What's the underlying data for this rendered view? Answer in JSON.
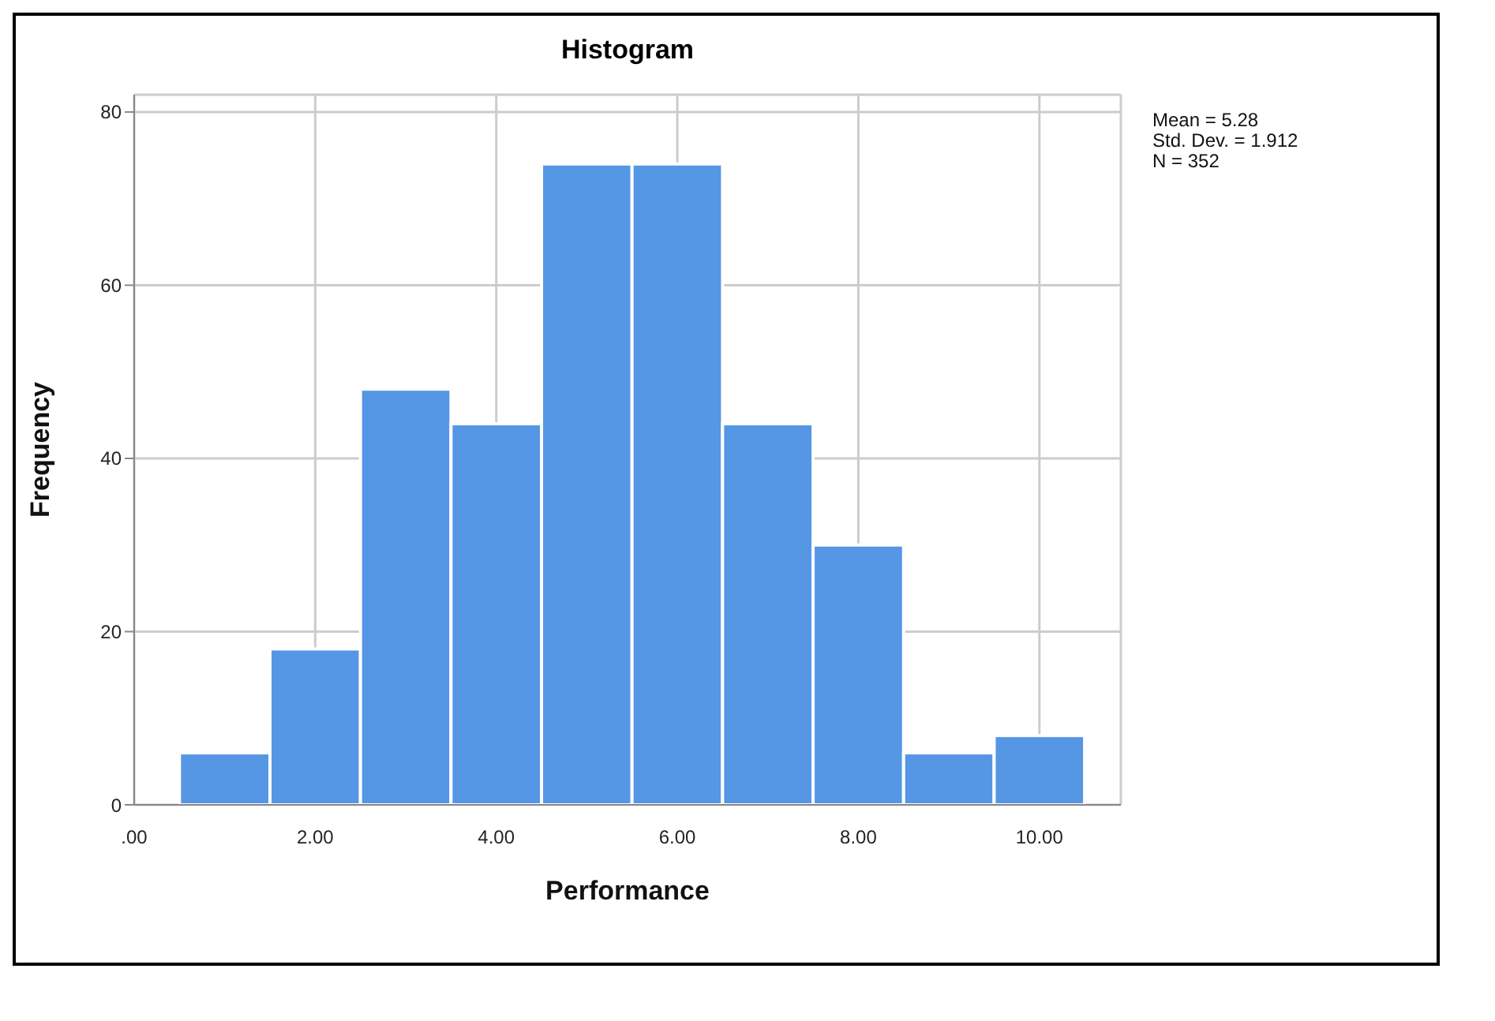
{
  "chart_data": {
    "type": "histogram",
    "title": "Histogram",
    "xlabel": "Performance",
    "ylabel": "Frequency",
    "bins": [
      0.5,
      1.5,
      2.5,
      3.5,
      4.5,
      5.5,
      6.5,
      7.5,
      8.5,
      9.5,
      10.5
    ],
    "values": [
      6,
      18,
      48,
      44,
      74,
      74,
      44,
      30,
      6,
      8
    ],
    "color": "#5596e5",
    "xlim": [
      0,
      10.9
    ],
    "xticks": [
      {
        "value": 0,
        "label": ".00"
      },
      {
        "value": 2,
        "label": "2.00"
      },
      {
        "value": 4,
        "label": "4.00"
      },
      {
        "value": 6,
        "label": "6.00"
      },
      {
        "value": 8,
        "label": "8.00"
      },
      {
        "value": 10,
        "label": "10.00"
      }
    ],
    "ylim": [
      0,
      82
    ],
    "yticks": [
      0,
      20,
      40,
      60,
      80
    ],
    "grid": true,
    "annotations": [
      "Mean = 5.28",
      "Std. Dev. = 1.912",
      "N = 352"
    ]
  }
}
